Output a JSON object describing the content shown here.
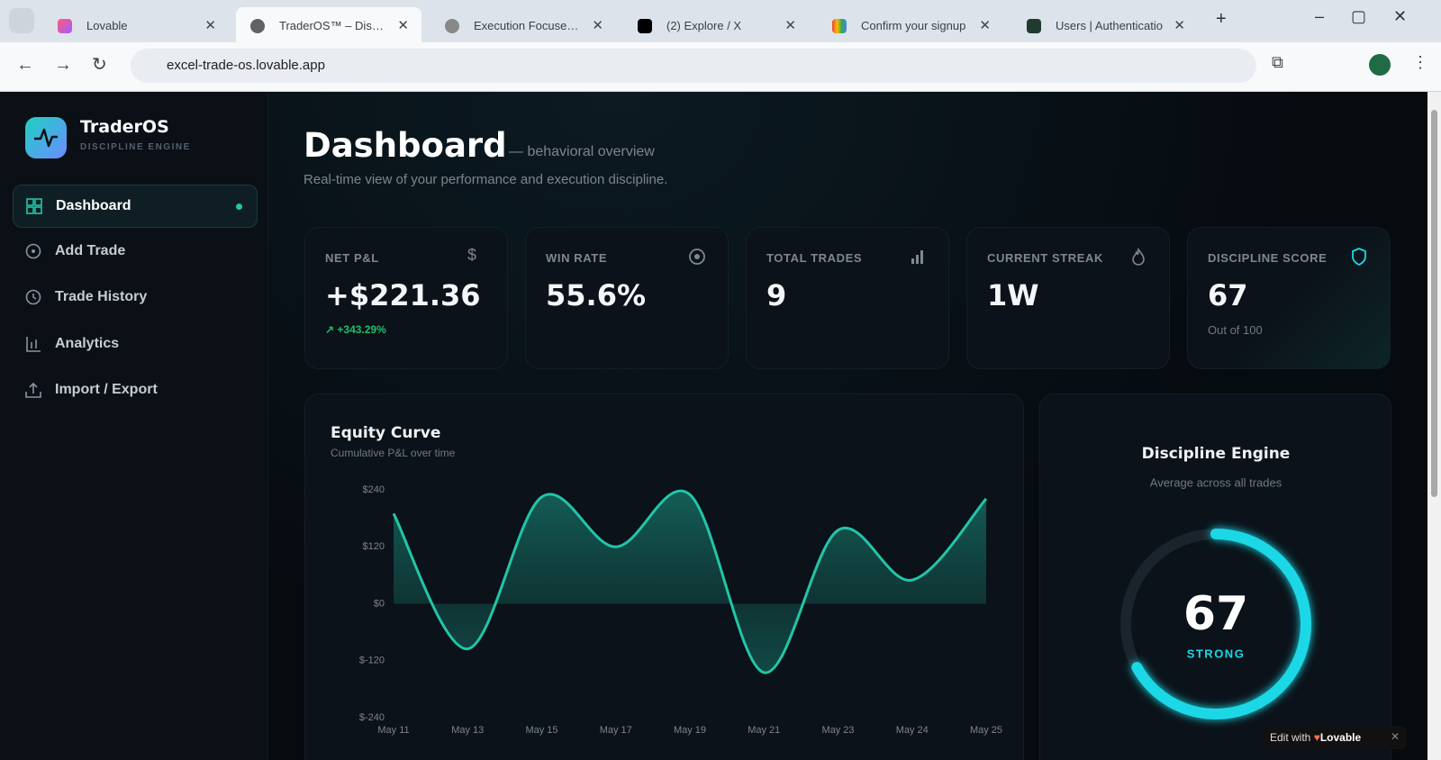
{
  "browser": {
    "tabs": [
      "Lovable",
      "TraderOS™ – Discipli",
      "Execution Focused C",
      "(2) Explore / X",
      "Confirm your signup",
      "Users | Authenticatio"
    ],
    "url": "excel-trade-os.lovable.app"
  },
  "sidebar": {
    "brand": "TraderOS",
    "tagline": "DISCIPLINE ENGINE",
    "nav": [
      "Dashboard",
      "Add Trade",
      "Trade History",
      "Analytics",
      "Import / Export"
    ]
  },
  "header": {
    "title": "Dashboard",
    "subtitle": "— behavioral overview",
    "description": "Real-time view of your performance and execution discipline."
  },
  "stats": [
    {
      "label": "NET P&L",
      "value": "+$221.36",
      "note": "+343.29%"
    },
    {
      "label": "WIN RATE",
      "value": "55.6%"
    },
    {
      "label": "TOTAL TRADES",
      "value": "9"
    },
    {
      "label": "CURRENT STREAK",
      "value": "1W"
    },
    {
      "label": "DISCIPLINE SCORE",
      "value": "67",
      "note": "Out of 100"
    }
  ],
  "chart_data": {
    "type": "line",
    "title": "Equity Curve",
    "subtitle": "Cumulative P&L over time",
    "categories": [
      "May 11",
      "May 13",
      "May 15",
      "May 17",
      "May 19",
      "May 21",
      "May 23",
      "May 24",
      "May 25"
    ],
    "values": [
      190,
      -95,
      225,
      120,
      230,
      -145,
      155,
      50,
      221.36
    ],
    "color": "#22c5a8",
    "ylim": [
      -240,
      240
    ],
    "yticks": [
      {
        "value": 240,
        "label": "$240"
      },
      {
        "value": 120,
        "label": "$120"
      },
      {
        "value": 0,
        "label": "$0"
      },
      {
        "value": -120,
        "label": "$-120"
      },
      {
        "value": -240,
        "label": "$-240"
      }
    ],
    "grid": false
  },
  "discipline": {
    "title": "Discipline Engine",
    "subtitle": "Average across all trades",
    "score": 67,
    "max": 100,
    "status": "STRONG",
    "color": "#1ad8e6"
  },
  "badge": {
    "text": "Edit with",
    "brand": "Lovable"
  }
}
